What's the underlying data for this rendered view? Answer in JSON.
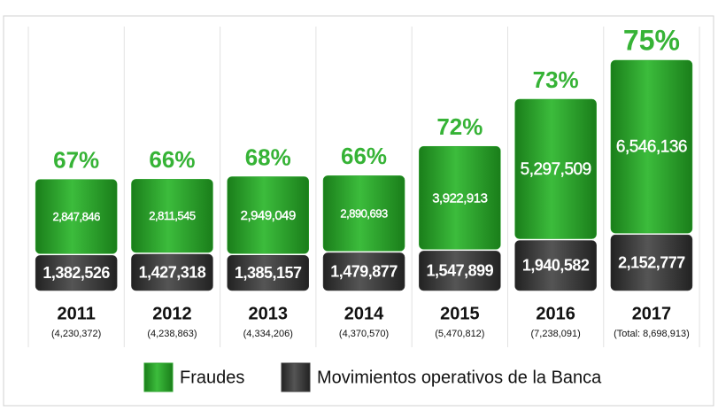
{
  "chart_data": {
    "type": "stacked-bar",
    "categories": [
      "2011",
      "2012",
      "2013",
      "2014",
      "2015",
      "2016",
      "2017"
    ],
    "series": [
      {
        "name": "Movimientos operativos de la Banca",
        "color": "#3b3b3b",
        "values": [
          1382526,
          1427318,
          1385157,
          1479877,
          1547899,
          1940582,
          2152777
        ],
        "value_labels": [
          "1,382,526",
          "1,427,318",
          "1,385,157",
          "1,479,877",
          "1,547,899",
          "1,940,582",
          "2,152,777"
        ]
      },
      {
        "name": "Fraudes",
        "color": "#2ea52e",
        "values": [
          2847846,
          2811545,
          2949049,
          2890693,
          3922913,
          5297509,
          6546136
        ],
        "value_labels": [
          "2,847,846",
          "2,811,545",
          "2,949,049",
          "2,890,693",
          "3,922,913",
          "5,297,509",
          "6,546,136"
        ]
      }
    ],
    "percentages": {
      "color": "#36b336",
      "values": [
        67,
        66,
        68,
        66,
        72,
        73,
        75
      ],
      "value_labels": [
        "67%",
        "66%",
        "68%",
        "66%",
        "72%",
        "73%",
        "75%"
      ]
    },
    "totals": {
      "values": [
        4230372,
        4238863,
        4334206,
        4370570,
        5470812,
        7238091,
        8698913
      ],
      "value_labels": [
        "(4,230,372)",
        "(4,238,863)",
        "(4,334,206)",
        "(4,370,570)",
        "(5,470,812)",
        "(7,238,091)",
        "(Total: 8,698,913)"
      ]
    }
  }
}
